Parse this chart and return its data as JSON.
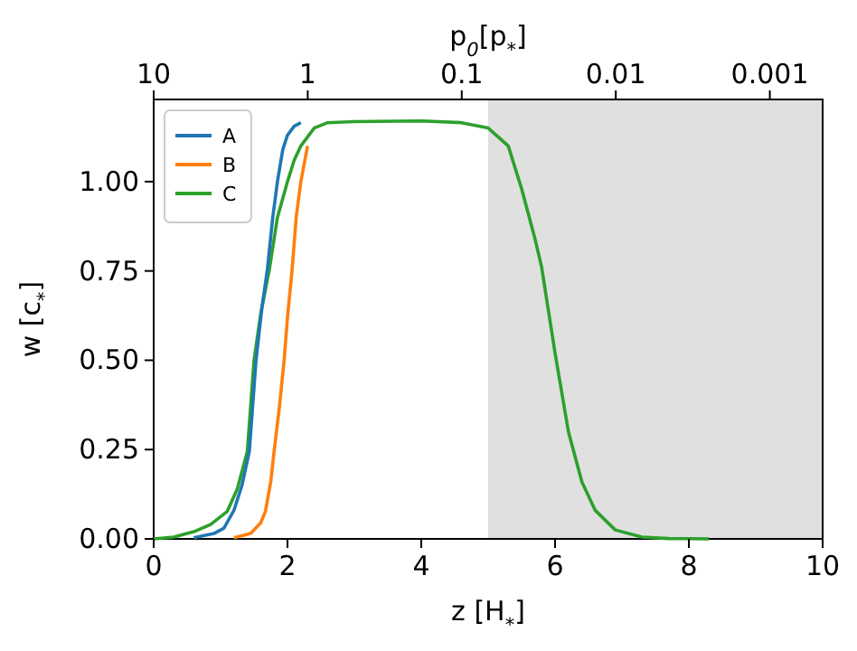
{
  "chart_data": {
    "type": "line",
    "xlabel": "z [H$_{*}$]",
    "ylabel": "w [c$_{*}$]",
    "x2label": "p$_{0}$[p$_{*}$]",
    "xlim": [
      0,
      10
    ],
    "xticks": [
      0,
      2,
      4,
      6,
      8,
      10
    ],
    "ylim": [
      0,
      1.23
    ],
    "yticks": [
      {
        "value": 0,
        "label": "0.00"
      },
      {
        "value": 0.25,
        "label": "0.25"
      },
      {
        "value": 0.5,
        "label": "0.50"
      },
      {
        "value": 0.75,
        "label": "0.75"
      },
      {
        "value": 1,
        "label": "1.00"
      }
    ],
    "x2lim": [
      10,
      0.000454
    ],
    "x2ticks": [
      10,
      1,
      0.1,
      0.01,
      0.001
    ],
    "log": "x2",
    "legend": "top left",
    "grid": false,
    "line_style": "solid",
    "marker": "none",
    "bands": [
      {
        "axis": "x",
        "from": 5,
        "to": 10,
        "color": "#e0e0e0"
      }
    ],
    "series": [
      {
        "name": "A",
        "color": "#1f77b4",
        "x": [
          0.6,
          0.9,
          1.05,
          1.2,
          1.32,
          1.43,
          1.53,
          1.62,
          1.7,
          1.78,
          1.85,
          1.93,
          2.0,
          2.1,
          2.2
        ],
        "values": [
          0.003,
          0.015,
          0.03,
          0.08,
          0.15,
          0.245,
          0.5,
          0.65,
          0.755,
          0.9,
          1.0,
          1.09,
          1.13,
          1.155,
          1.165
        ]
      },
      {
        "name": "B",
        "color": "#ff7f0e",
        "x": [
          1.2,
          1.45,
          1.6,
          1.67,
          1.75,
          1.8,
          1.88,
          1.95,
          2.0,
          2.07,
          2.13,
          2.2,
          2.3
        ],
        "values": [
          0.003,
          0.015,
          0.045,
          0.077,
          0.16,
          0.245,
          0.37,
          0.5,
          0.62,
          0.755,
          0.9,
          1.0,
          1.1
        ]
      },
      {
        "name": "C",
        "color": "#2ca02c",
        "x": [
          0,
          0.3,
          0.6,
          0.85,
          1.1,
          1.25,
          1.4,
          1.5,
          1.6,
          1.73,
          1.85,
          2.0,
          2.1,
          2.2,
          2.4,
          2.6,
          3,
          4,
          4.6,
          5,
          5.3,
          5.5,
          5.7,
          5.8,
          5.9,
          6.0,
          6.1,
          6.2,
          6.4,
          6.6,
          6.9,
          7.3,
          7.7,
          8.3
        ],
        "values": [
          0,
          0.005,
          0.02,
          0.04,
          0.077,
          0.14,
          0.245,
          0.5,
          0.63,
          0.755,
          0.9,
          1.0,
          1.06,
          1.1,
          1.15,
          1.165,
          1.168,
          1.17,
          1.165,
          1.15,
          1.1,
          0.98,
          0.84,
          0.76,
          0.64,
          0.52,
          0.41,
          0.3,
          0.16,
          0.08,
          0.025,
          0.005,
          0.001,
          0
        ]
      }
    ]
  }
}
